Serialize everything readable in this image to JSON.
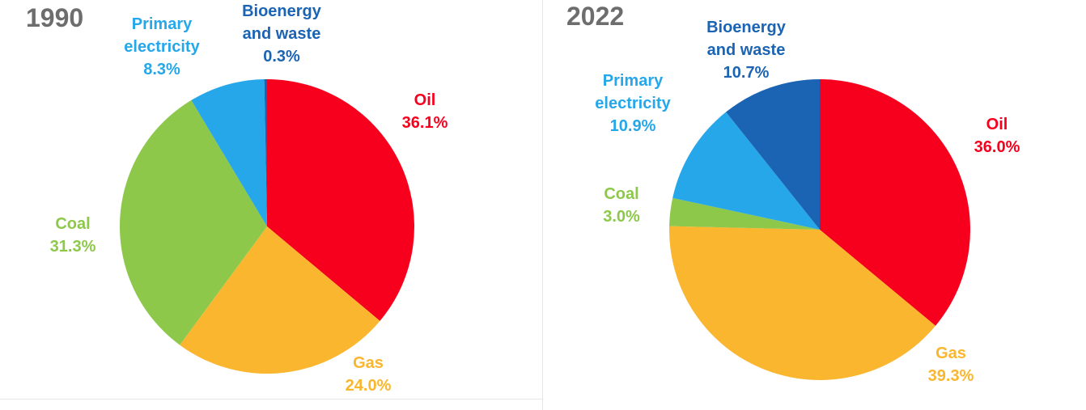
{
  "chart_data": [
    {
      "type": "pie",
      "title": "1990",
      "slices": [
        {
          "label": "Oil",
          "value": 36.1,
          "value_label": "36.1%",
          "color": "#f7001e"
        },
        {
          "label": "Gas",
          "value": 24.0,
          "value_label": "24.0%",
          "color": "#f9b62e"
        },
        {
          "label": "Coal",
          "value": 31.3,
          "value_label": "31.3%",
          "color": "#8ec84b"
        },
        {
          "label": "Primary electricity",
          "value": 8.3,
          "value_label": "8.3%",
          "color": "#25a7ea"
        },
        {
          "label": "Bioenergy and waste",
          "value": 0.3,
          "value_label": "0.3%",
          "color": "#1b64b4"
        }
      ]
    },
    {
      "type": "pie",
      "title": "2022",
      "slices": [
        {
          "label": "Oil",
          "value": 36.0,
          "value_label": "36.0%",
          "color": "#f7001e"
        },
        {
          "label": "Gas",
          "value": 39.3,
          "value_label": "39.3%",
          "color": "#f9b62e"
        },
        {
          "label": "Coal",
          "value": 3.0,
          "value_label": "3.0%",
          "color": "#8ec84b"
        },
        {
          "label": "Primary electricity",
          "value": 10.9,
          "value_label": "10.9%",
          "color": "#25a7ea"
        },
        {
          "label": "Bioenergy and waste",
          "value": 10.7,
          "value_label": "10.7%",
          "color": "#1b64b4"
        }
      ]
    }
  ]
}
